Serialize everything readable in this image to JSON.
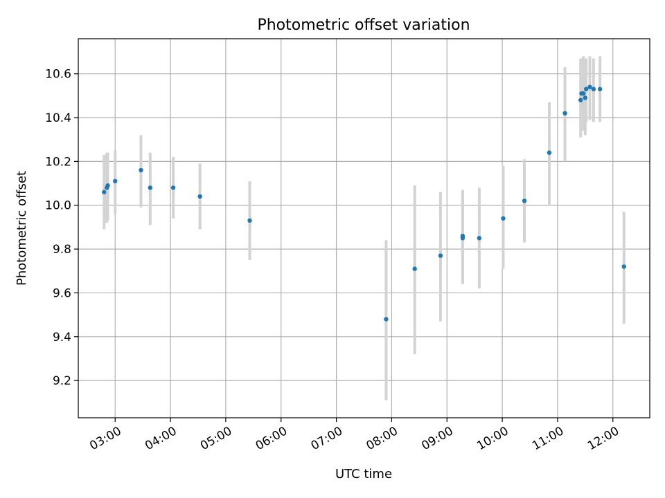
{
  "chart_data": {
    "type": "scatter",
    "title": "Photometric offset variation",
    "xlabel": "UTC time",
    "ylabel": "Photometric offset",
    "x_type": "time",
    "xlim": [
      "02:20",
      "12:40"
    ],
    "ylim": [
      9.03,
      10.76
    ],
    "x_ticks": [
      "03:00",
      "04:00",
      "05:00",
      "06:00",
      "07:00",
      "08:00",
      "09:00",
      "10:00",
      "11:00",
      "12:00"
    ],
    "y_ticks": [
      "9.2",
      "9.4",
      "9.6",
      "9.8",
      "10.0",
      "10.2",
      "10.4",
      "10.6"
    ],
    "grid": true,
    "point_color": "#1f77b4",
    "errorbar_color": "#d3d3d3",
    "series": [
      {
        "points": [
          {
            "x": "02:48",
            "y": 10.06,
            "low": 9.89,
            "high": 10.23
          },
          {
            "x": "02:51",
            "y": 10.08,
            "low": 9.92,
            "high": 10.24
          },
          {
            "x": "02:52",
            "y": 10.09,
            "low": 9.93,
            "high": 10.24
          },
          {
            "x": "03:00",
            "y": 10.11,
            "low": 9.96,
            "high": 10.25
          },
          {
            "x": "03:28",
            "y": 10.16,
            "low": 9.99,
            "high": 10.32
          },
          {
            "x": "03:38",
            "y": 10.08,
            "low": 9.91,
            "high": 10.24
          },
          {
            "x": "04:03",
            "y": 10.08,
            "low": 9.94,
            "high": 10.22
          },
          {
            "x": "04:32",
            "y": 10.04,
            "low": 9.89,
            "high": 10.19
          },
          {
            "x": "05:26",
            "y": 9.93,
            "low": 9.75,
            "high": 10.11
          },
          {
            "x": "07:54",
            "y": 9.48,
            "low": 9.11,
            "high": 9.84
          },
          {
            "x": "08:25",
            "y": 9.71,
            "low": 9.32,
            "high": 10.09
          },
          {
            "x": "08:53",
            "y": 9.77,
            "low": 9.47,
            "high": 10.06
          },
          {
            "x": "09:17",
            "y": 9.85,
            "low": 9.64,
            "high": 10.07
          },
          {
            "x": "09:17",
            "y": 9.86,
            "low": 9.65,
            "high": 10.07
          },
          {
            "x": "09:35",
            "y": 9.85,
            "low": 9.62,
            "high": 10.08
          },
          {
            "x": "10:01",
            "y": 9.94,
            "low": 9.71,
            "high": 10.18
          },
          {
            "x": "10:24",
            "y": 10.02,
            "low": 9.83,
            "high": 10.21
          },
          {
            "x": "10:51",
            "y": 10.24,
            "low": 10.0,
            "high": 10.47
          },
          {
            "x": "11:08",
            "y": 10.42,
            "low": 10.2,
            "high": 10.63
          },
          {
            "x": "11:25",
            "y": 10.48,
            "low": 10.31,
            "high": 10.67
          },
          {
            "x": "11:26",
            "y": 10.51,
            "low": 10.34,
            "high": 10.67
          },
          {
            "x": "11:28",
            "y": 10.51,
            "low": 10.34,
            "high": 10.68
          },
          {
            "x": "11:30",
            "y": 10.49,
            "low": 10.32,
            "high": 10.67
          },
          {
            "x": "11:31",
            "y": 10.53,
            "low": 10.38,
            "high": 10.67
          },
          {
            "x": "11:35",
            "y": 10.54,
            "low": 10.39,
            "high": 10.68
          },
          {
            "x": "11:39",
            "y": 10.53,
            "low": 10.38,
            "high": 10.67
          },
          {
            "x": "11:46",
            "y": 10.53,
            "low": 10.38,
            "high": 10.68
          },
          {
            "x": "12:12",
            "y": 9.72,
            "low": 9.46,
            "high": 9.97
          }
        ]
      }
    ]
  }
}
